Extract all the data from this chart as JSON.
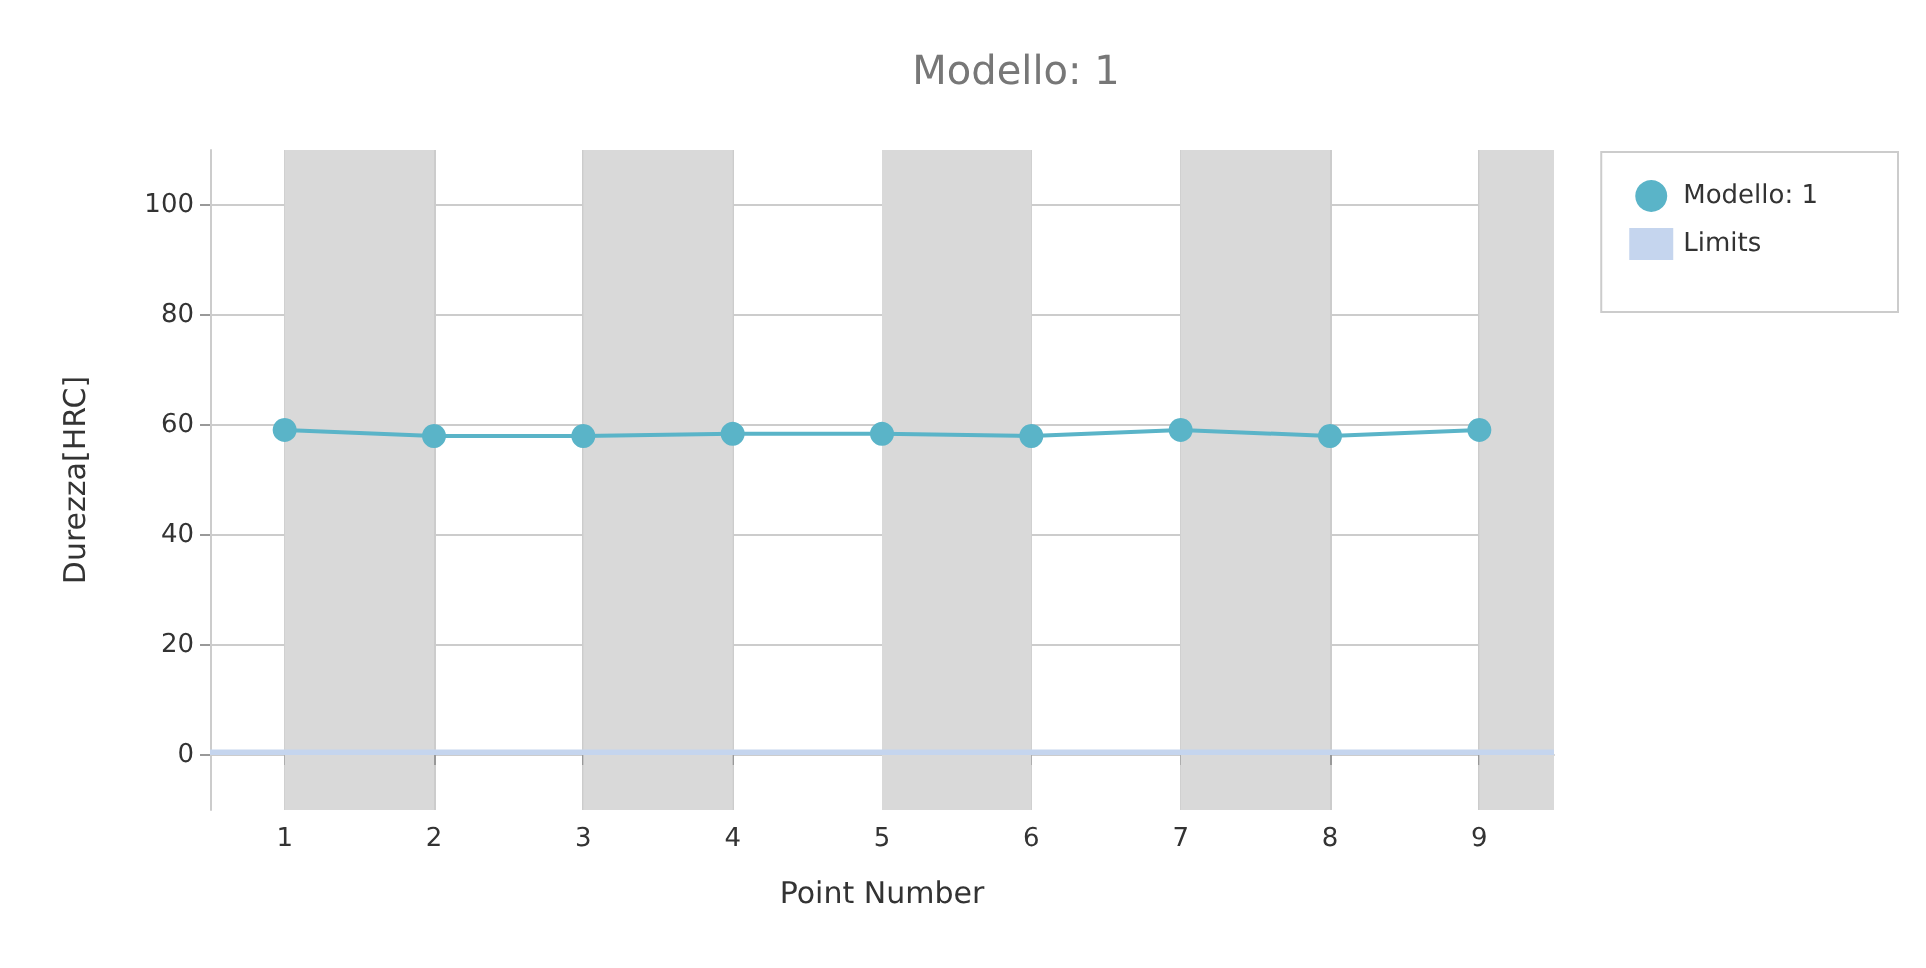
{
  "chart_data": {
    "type": "line",
    "title": "Modello: 1",
    "xlabel": "Point Number",
    "ylabel": "Durezza[HRC]",
    "x": [
      1,
      2,
      3,
      4,
      5,
      6,
      7,
      8,
      9
    ],
    "series": [
      {
        "name": "Modello: 1",
        "color": "#5ab4c8",
        "values": [
          59.1,
          58.0,
          58.0,
          58.4,
          58.4,
          58.0,
          59.1,
          58.0,
          59.1
        ]
      }
    ],
    "xlim": [
      0.5,
      9.5
    ],
    "xticks": [
      1,
      2,
      3,
      4,
      5,
      6,
      7,
      8,
      9
    ],
    "ylim": [
      -10,
      110
    ],
    "yticks": [
      0,
      20,
      40,
      60,
      80,
      100
    ],
    "bands": [
      {
        "axis": "y",
        "from": 0,
        "to": 1,
        "label": "Limits",
        "color": "#c5d5ee"
      },
      {
        "axis": "x",
        "from": 1,
        "to": 2,
        "color": "#d9d9d9"
      },
      {
        "axis": "x",
        "from": 3,
        "to": 4,
        "color": "#d9d9d9"
      },
      {
        "axis": "x",
        "from": 5,
        "to": 6,
        "color": "#d9d9d9"
      },
      {
        "axis": "x",
        "from": 7,
        "to": 8,
        "color": "#d9d9d9"
      },
      {
        "axis": "x",
        "from": 9,
        "to": 9.5,
        "color": "#d9d9d9"
      }
    ],
    "grid": true,
    "legend": "top right",
    "marker": "circle",
    "line_style": "solid"
  }
}
